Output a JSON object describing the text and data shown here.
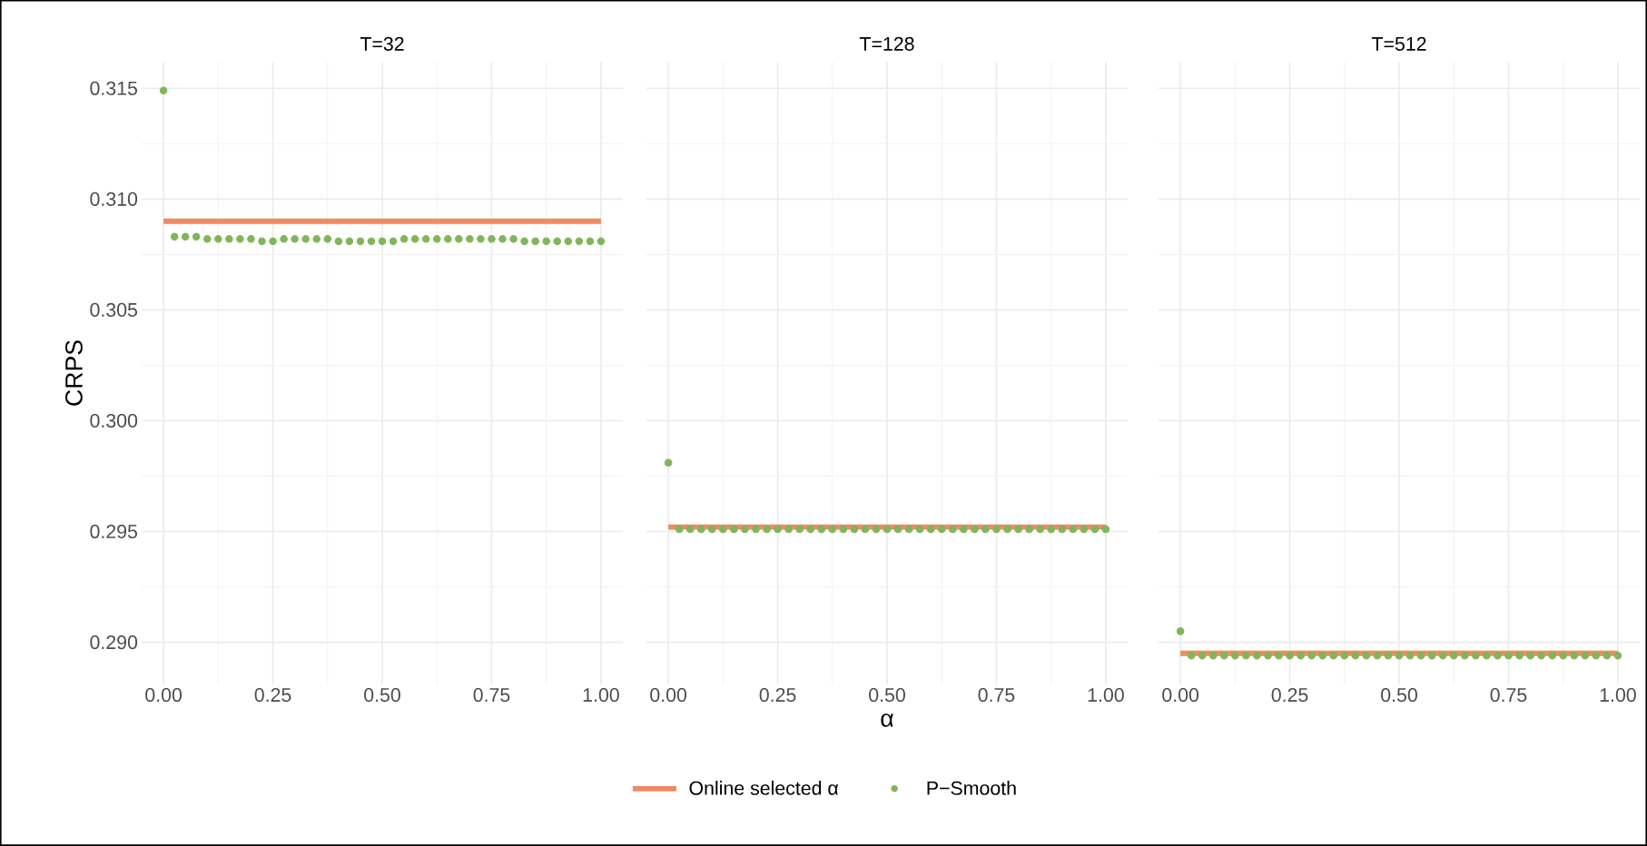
{
  "chart_data": [
    {
      "type": "scatter",
      "title": "T=32",
      "ylabel": "CRPS",
      "xlim": [
        -0.05,
        1.05
      ],
      "ylim": [
        0.2881,
        0.3162
      ],
      "xticks": [
        {
          "value": 0,
          "label": "0.00"
        },
        {
          "value": 0.25,
          "label": "0.25"
        },
        {
          "value": 0.5,
          "label": "0.50"
        },
        {
          "value": 0.75,
          "label": "0.75"
        },
        {
          "value": 1,
          "label": "1.00"
        }
      ],
      "yticks": [
        {
          "value": 0.29,
          "label": "0.290"
        },
        {
          "value": 0.295,
          "label": "0.295"
        },
        {
          "value": 0.3,
          "label": "0.300"
        },
        {
          "value": 0.305,
          "label": "0.305"
        },
        {
          "value": 0.31,
          "label": "0.310"
        },
        {
          "value": 0.315,
          "label": "0.315"
        }
      ],
      "grid": true,
      "series": [
        {
          "type": "line",
          "marker": "none",
          "color": "#ef8a62",
          "x": [
            0,
            1
          ],
          "values": [
            0.309,
            0.309
          ]
        },
        {
          "type": "scatter",
          "marker": "circle",
          "color": "#7fb65a",
          "x": [
            0,
            0.025,
            0.05,
            0.075,
            0.1,
            0.125,
            0.15,
            0.175,
            0.2,
            0.225,
            0.25,
            0.275,
            0.3,
            0.325,
            0.35,
            0.375,
            0.4,
            0.425,
            0.45,
            0.475,
            0.5,
            0.525,
            0.55,
            0.575,
            0.6,
            0.625,
            0.65,
            0.675,
            0.7,
            0.725,
            0.75,
            0.775,
            0.8,
            0.825,
            0.85,
            0.875,
            0.9,
            0.925,
            0.95,
            0.975,
            1
          ],
          "values": [
            0.3149,
            0.3083,
            0.3083,
            0.3083,
            0.3082,
            0.3082,
            0.3082,
            0.3082,
            0.3082,
            0.3081,
            0.3081,
            0.3082,
            0.3082,
            0.3082,
            0.3082,
            0.3082,
            0.3081,
            0.3081,
            0.3081,
            0.3081,
            0.3081,
            0.3081,
            0.3082,
            0.3082,
            0.3082,
            0.3082,
            0.3082,
            0.3082,
            0.3082,
            0.3082,
            0.3082,
            0.3082,
            0.3082,
            0.3081,
            0.3081,
            0.3081,
            0.3081,
            0.3081,
            0.3081,
            0.3081,
            0.3081
          ]
        }
      ]
    },
    {
      "type": "scatter",
      "title": "T=128",
      "xlabel": "α",
      "xlim": [
        -0.05,
        1.05
      ],
      "ylim": [
        0.2881,
        0.3162
      ],
      "xticks": [
        {
          "value": 0,
          "label": "0.00"
        },
        {
          "value": 0.25,
          "label": "0.25"
        },
        {
          "value": 0.5,
          "label": "0.50"
        },
        {
          "value": 0.75,
          "label": "0.75"
        },
        {
          "value": 1,
          "label": "1.00"
        }
      ],
      "yticks": [
        0.29,
        0.295,
        0.3,
        0.305,
        0.31,
        0.315
      ],
      "tick_labels": "x",
      "grid": true,
      "legend": "bottom",
      "series": [
        {
          "type": "line",
          "marker": "none",
          "name": "Online selected α",
          "color": "#ef8a62",
          "x": [
            0,
            1
          ],
          "values": [
            0.2952,
            0.2952
          ]
        },
        {
          "type": "scatter",
          "marker": "circle",
          "name": "P−Smooth",
          "color": "#7fb65a",
          "x": [
            0,
            0.025,
            0.05,
            0.075,
            0.1,
            0.125,
            0.15,
            0.175,
            0.2,
            0.225,
            0.25,
            0.275,
            0.3,
            0.325,
            0.35,
            0.375,
            0.4,
            0.425,
            0.45,
            0.475,
            0.5,
            0.525,
            0.55,
            0.575,
            0.6,
            0.625,
            0.65,
            0.675,
            0.7,
            0.725,
            0.75,
            0.775,
            0.8,
            0.825,
            0.85,
            0.875,
            0.9,
            0.925,
            0.95,
            0.975,
            1
          ],
          "values": [
            0.2981,
            0.2951,
            0.2951,
            0.2951,
            0.2951,
            0.2951,
            0.2951,
            0.2951,
            0.2951,
            0.2951,
            0.2951,
            0.2951,
            0.2951,
            0.2951,
            0.2951,
            0.2951,
            0.2951,
            0.2951,
            0.2951,
            0.2951,
            0.2951,
            0.2951,
            0.2951,
            0.2951,
            0.2951,
            0.2951,
            0.2951,
            0.2951,
            0.2951,
            0.2951,
            0.2951,
            0.2951,
            0.2951,
            0.2951,
            0.2951,
            0.2951,
            0.2951,
            0.2951,
            0.2951,
            0.2951,
            0.2951
          ]
        }
      ]
    },
    {
      "type": "scatter",
      "title": "T=512",
      "xlim": [
        -0.05,
        1.05
      ],
      "ylim": [
        0.2881,
        0.3162
      ],
      "xticks": [
        {
          "value": 0,
          "label": "0.00"
        },
        {
          "value": 0.25,
          "label": "0.25"
        },
        {
          "value": 0.5,
          "label": "0.50"
        },
        {
          "value": 0.75,
          "label": "0.75"
        },
        {
          "value": 1,
          "label": "1.00"
        }
      ],
      "yticks": [
        0.29,
        0.295,
        0.3,
        0.305,
        0.31,
        0.315
      ],
      "tick_labels": "x",
      "grid": true,
      "series": [
        {
          "type": "line",
          "marker": "none",
          "color": "#ef8a62",
          "x": [
            0,
            1
          ],
          "values": [
            0.2895,
            0.2895
          ]
        },
        {
          "type": "scatter",
          "marker": "circle",
          "color": "#7fb65a",
          "x": [
            0,
            0.025,
            0.05,
            0.075,
            0.1,
            0.125,
            0.15,
            0.175,
            0.2,
            0.225,
            0.25,
            0.275,
            0.3,
            0.325,
            0.35,
            0.375,
            0.4,
            0.425,
            0.45,
            0.475,
            0.5,
            0.525,
            0.55,
            0.575,
            0.6,
            0.625,
            0.65,
            0.675,
            0.7,
            0.725,
            0.75,
            0.775,
            0.8,
            0.825,
            0.85,
            0.875,
            0.9,
            0.925,
            0.95,
            0.975,
            1
          ],
          "values": [
            0.2905,
            0.2894,
            0.2894,
            0.2894,
            0.2894,
            0.2894,
            0.2894,
            0.2894,
            0.2894,
            0.2894,
            0.2894,
            0.2894,
            0.2894,
            0.2894,
            0.2894,
            0.2894,
            0.2894,
            0.2894,
            0.2894,
            0.2894,
            0.2894,
            0.2894,
            0.2894,
            0.2894,
            0.2894,
            0.2894,
            0.2894,
            0.2894,
            0.2894,
            0.2894,
            0.2894,
            0.2894,
            0.2894,
            0.2894,
            0.2894,
            0.2894,
            0.2894,
            0.2894,
            0.2894,
            0.2894,
            0.2894
          ]
        }
      ]
    }
  ]
}
